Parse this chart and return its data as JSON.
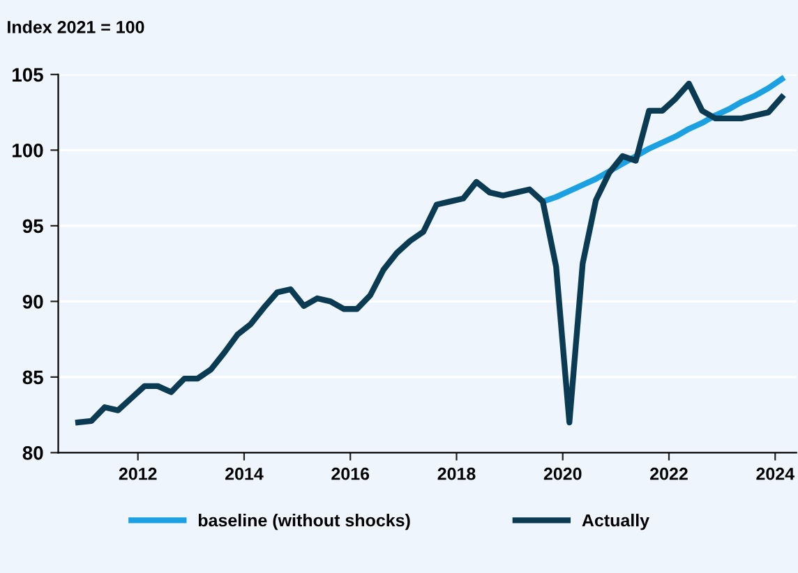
{
  "chart_data": {
    "type": "line",
    "ylabel": "Index 2021 = 100",
    "series": [
      {
        "name": "baseline (without shocks)",
        "color": "#1ba1e2",
        "x": [
          2019.625,
          2019.875,
          2020.125,
          2020.375,
          2020.625,
          2020.875,
          2021.125,
          2021.375,
          2021.625,
          2021.875,
          2022.125,
          2022.375,
          2022.625,
          2022.875,
          2023.125,
          2023.375,
          2023.625,
          2023.875,
          2024.125
        ],
        "values": [
          96.6,
          96.9,
          97.3,
          97.7,
          98.1,
          98.6,
          99.1,
          99.6,
          100.1,
          100.5,
          100.9,
          101.4,
          101.8,
          102.3,
          102.7,
          103.2,
          103.6,
          104.1,
          104.7
        ]
      },
      {
        "name": "Actually",
        "color": "#0b3a53",
        "x": [
          2010.875,
          2011.125,
          2011.375,
          2011.625,
          2011.875,
          2012.125,
          2012.375,
          2012.625,
          2012.875,
          2013.125,
          2013.375,
          2013.625,
          2013.875,
          2014.125,
          2014.375,
          2014.625,
          2014.875,
          2015.125,
          2015.375,
          2015.625,
          2015.875,
          2016.125,
          2016.375,
          2016.625,
          2016.875,
          2017.125,
          2017.375,
          2017.625,
          2017.875,
          2018.125,
          2018.375,
          2018.625,
          2018.875,
          2019.125,
          2019.375,
          2019.625,
          2019.875,
          2020.125,
          2020.375,
          2020.625,
          2020.875,
          2021.125,
          2021.375,
          2021.625,
          2021.875,
          2022.125,
          2022.375,
          2022.625,
          2022.875,
          2023.125,
          2023.375,
          2023.625,
          2023.875,
          2024.125
        ],
        "values": [
          82.0,
          82.1,
          83.0,
          82.8,
          83.6,
          84.4,
          84.4,
          84.0,
          84.9,
          84.9,
          85.5,
          86.6,
          87.8,
          88.5,
          89.6,
          90.6,
          90.8,
          89.7,
          90.2,
          90.0,
          89.5,
          89.5,
          90.4,
          92.1,
          93.2,
          94.0,
          94.6,
          96.4,
          96.6,
          96.8,
          97.9,
          97.2,
          97.0,
          97.2,
          97.4,
          96.6,
          92.3,
          82.0,
          92.5,
          96.7,
          98.5,
          99.6,
          99.3,
          102.6,
          102.6,
          103.4,
          104.4,
          102.6,
          102.1,
          102.1,
          102.1,
          102.3,
          102.5,
          103.5
        ]
      }
    ],
    "xlim": [
      2010.5,
      2024.4
    ],
    "xticks": [
      2012,
      2014,
      2016,
      2018,
      2020,
      2022,
      2024
    ],
    "ylim": [
      80,
      105
    ],
    "yticks": [
      80,
      85,
      90,
      95,
      100,
      105
    ],
    "grid": "y",
    "legend": "bottom",
    "marker": "none",
    "line_style": "solid"
  }
}
